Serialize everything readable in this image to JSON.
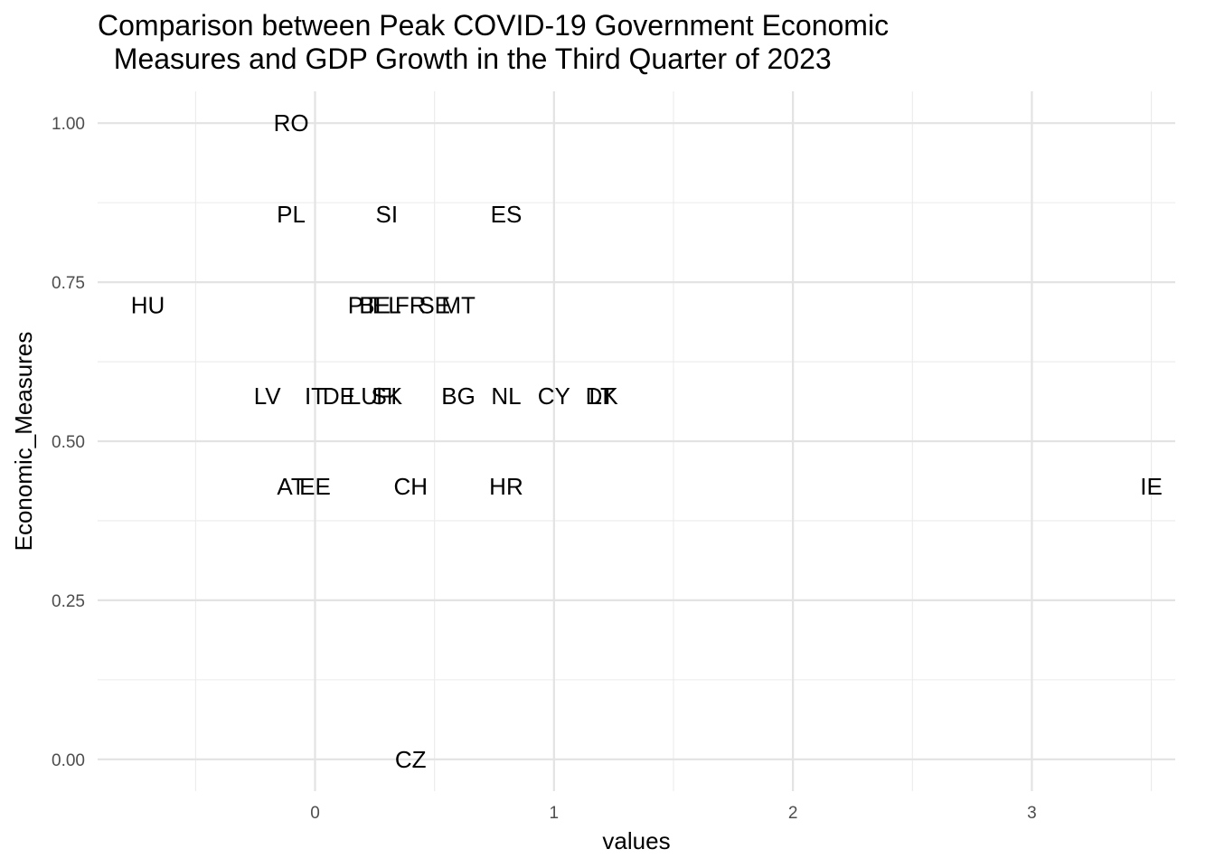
{
  "chart_data": {
    "type": "scatter",
    "marker": "text-label",
    "title": "Comparison between Peak COVID-19 Government Economic\n  Measures and GDP Growth in the Third Quarter of 2023",
    "xlabel": "values",
    "ylabel": "Economic_Measures",
    "xlim": [
      -0.91,
      3.6
    ],
    "ylim": [
      -0.05,
      1.05
    ],
    "x_ticks": [
      0,
      1,
      2,
      3
    ],
    "x_tick_labels": [
      "0",
      "1",
      "2",
      "3"
    ],
    "y_ticks": [
      0,
      0.25,
      0.5,
      0.75,
      1
    ],
    "y_tick_labels": [
      "0.00",
      "0.25",
      "0.50",
      "0.75",
      "1.00"
    ],
    "grid": true,
    "legend": "none",
    "points": [
      {
        "label": "RO",
        "x": -0.1,
        "y": 1.0
      },
      {
        "label": "PL",
        "x": -0.1,
        "y": 0.857
      },
      {
        "label": "SI",
        "x": 0.3,
        "y": 0.857
      },
      {
        "label": "ES",
        "x": 0.8,
        "y": 0.857
      },
      {
        "label": "HU",
        "x": -0.7,
        "y": 0.714
      },
      {
        "label": "PT",
        "x": 0.2,
        "y": 0.714
      },
      {
        "label": "BE",
        "x": 0.25,
        "y": 0.714
      },
      {
        "label": "EL",
        "x": 0.3,
        "y": 0.714
      },
      {
        "label": "FR",
        "x": 0.4,
        "y": 0.714
      },
      {
        "label": "SE",
        "x": 0.5,
        "y": 0.714
      },
      {
        "label": "MT",
        "x": 0.6,
        "y": 0.714
      },
      {
        "label": "LV",
        "x": -0.2,
        "y": 0.571
      },
      {
        "label": "IT",
        "x": 0.0,
        "y": 0.571
      },
      {
        "label": "DE",
        "x": 0.1,
        "y": 0.571
      },
      {
        "label": "LU",
        "x": 0.2,
        "y": 0.571
      },
      {
        "label": "FI",
        "x": 0.3,
        "y": 0.571
      },
      {
        "label": "SK",
        "x": 0.3,
        "y": 0.571
      },
      {
        "label": "BG",
        "x": 0.6,
        "y": 0.571
      },
      {
        "label": "NL",
        "x": 0.8,
        "y": 0.571
      },
      {
        "label": "CY",
        "x": 1.0,
        "y": 0.571
      },
      {
        "label": "LT",
        "x": 1.2,
        "y": 0.571
      },
      {
        "label": "DK",
        "x": 1.2,
        "y": 0.571
      },
      {
        "label": "AT",
        "x": -0.1,
        "y": 0.429
      },
      {
        "label": "EE",
        "x": 0.0,
        "y": 0.429
      },
      {
        "label": "CH",
        "x": 0.4,
        "y": 0.429
      },
      {
        "label": "HR",
        "x": 0.8,
        "y": 0.429
      },
      {
        "label": "IE",
        "x": 3.5,
        "y": 0.429
      },
      {
        "label": "CZ",
        "x": 0.4,
        "y": 0.0
      }
    ]
  }
}
